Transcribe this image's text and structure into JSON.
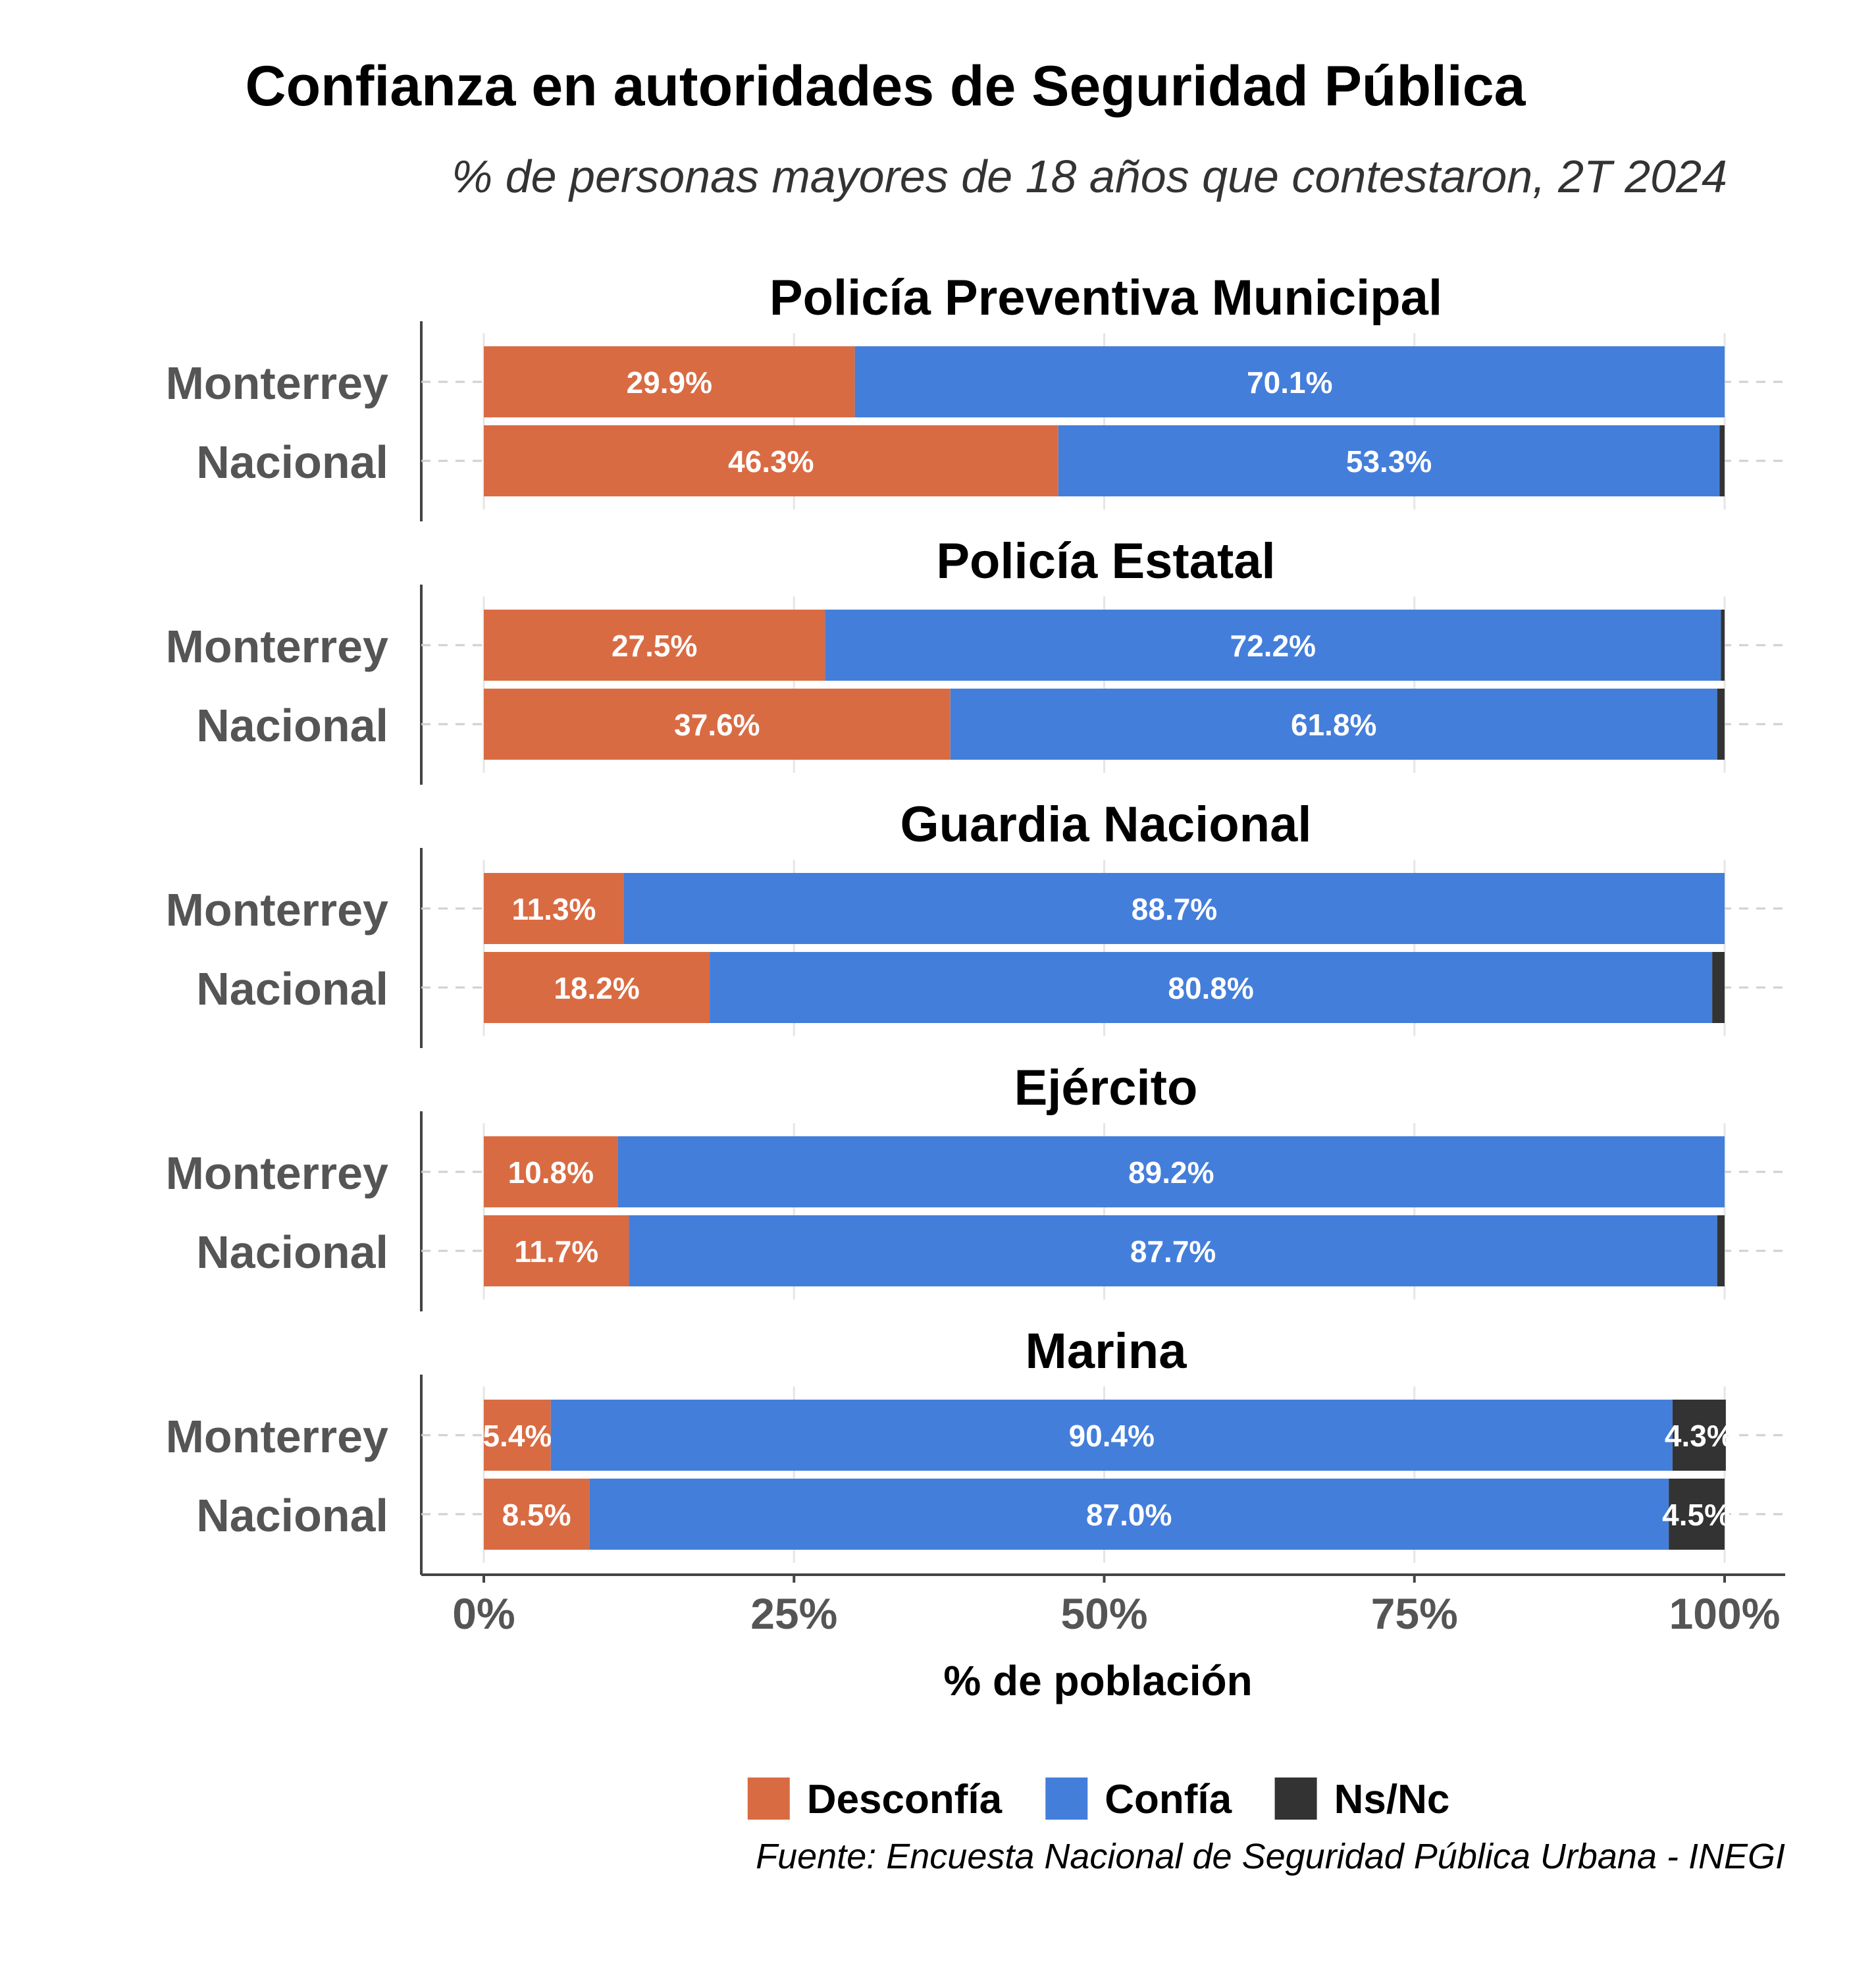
{
  "chart_data": {
    "type": "bar",
    "orientation": "horizontal",
    "stacked": true,
    "title": "Confianza en autoridades de Seguridad Pública",
    "subtitle": "% de personas mayores de 18 años que contestaron, 2T 2024",
    "xlabel": "% de población",
    "ylabel": "",
    "xlim": [
      0,
      100
    ],
    "x_ticks": [
      0,
      25,
      50,
      75,
      100
    ],
    "x_tick_labels": [
      "0%",
      "25%",
      "50%",
      "75%",
      "100%"
    ],
    "grid": true,
    "legend_position": "bottom",
    "series_names": [
      "Desconfía",
      "Confía",
      "Ns/Nc"
    ],
    "colors": {
      "Desconfía": "#D96B43",
      "Confía": "#447EDB",
      "Ns/Nc": "#333333"
    },
    "panels": [
      {
        "title": "Policía Preventiva Municipal",
        "rows": [
          {
            "label": "Monterrey",
            "values": [
              29.9,
              70.1,
              0.0
            ],
            "value_labels": [
              "29.9%",
              "70.1%",
              ""
            ]
          },
          {
            "label": "Nacional",
            "values": [
              46.3,
              53.3,
              0.4
            ],
            "value_labels": [
              "46.3%",
              "53.3%",
              ""
            ]
          }
        ]
      },
      {
        "title": "Policía Estatal",
        "rows": [
          {
            "label": "Monterrey",
            "values": [
              27.5,
              72.2,
              0.3
            ],
            "value_labels": [
              "27.5%",
              "72.2%",
              ""
            ]
          },
          {
            "label": "Nacional",
            "values": [
              37.6,
              61.8,
              0.6
            ],
            "value_labels": [
              "37.6%",
              "61.8%",
              ""
            ]
          }
        ]
      },
      {
        "title": "Guardia Nacional",
        "rows": [
          {
            "label": "Monterrey",
            "values": [
              11.3,
              88.7,
              0.0
            ],
            "value_labels": [
              "11.3%",
              "88.7%",
              ""
            ]
          },
          {
            "label": "Nacional",
            "values": [
              18.2,
              80.8,
              1.0
            ],
            "value_labels": [
              "18.2%",
              "80.8%",
              ""
            ]
          }
        ]
      },
      {
        "title": "Ejército",
        "rows": [
          {
            "label": "Monterrey",
            "values": [
              10.8,
              89.2,
              0.0
            ],
            "value_labels": [
              "10.8%",
              "89.2%",
              ""
            ]
          },
          {
            "label": "Nacional",
            "values": [
              11.7,
              87.7,
              0.6
            ],
            "value_labels": [
              "11.7%",
              "87.7%",
              ""
            ]
          }
        ]
      },
      {
        "title": "Marina",
        "rows": [
          {
            "label": "Monterrey",
            "values": [
              5.4,
              90.4,
              4.3
            ],
            "value_labels": [
              "5.4%",
              "90.4%",
              "4.3%"
            ]
          },
          {
            "label": "Nacional",
            "values": [
              8.5,
              87.0,
              4.5
            ],
            "value_labels": [
              "8.5%",
              "87.0%",
              "4.5%"
            ]
          }
        ]
      }
    ],
    "source": "Fuente: Encuesta Nacional de Seguridad Pública Urbana - INEGI"
  }
}
